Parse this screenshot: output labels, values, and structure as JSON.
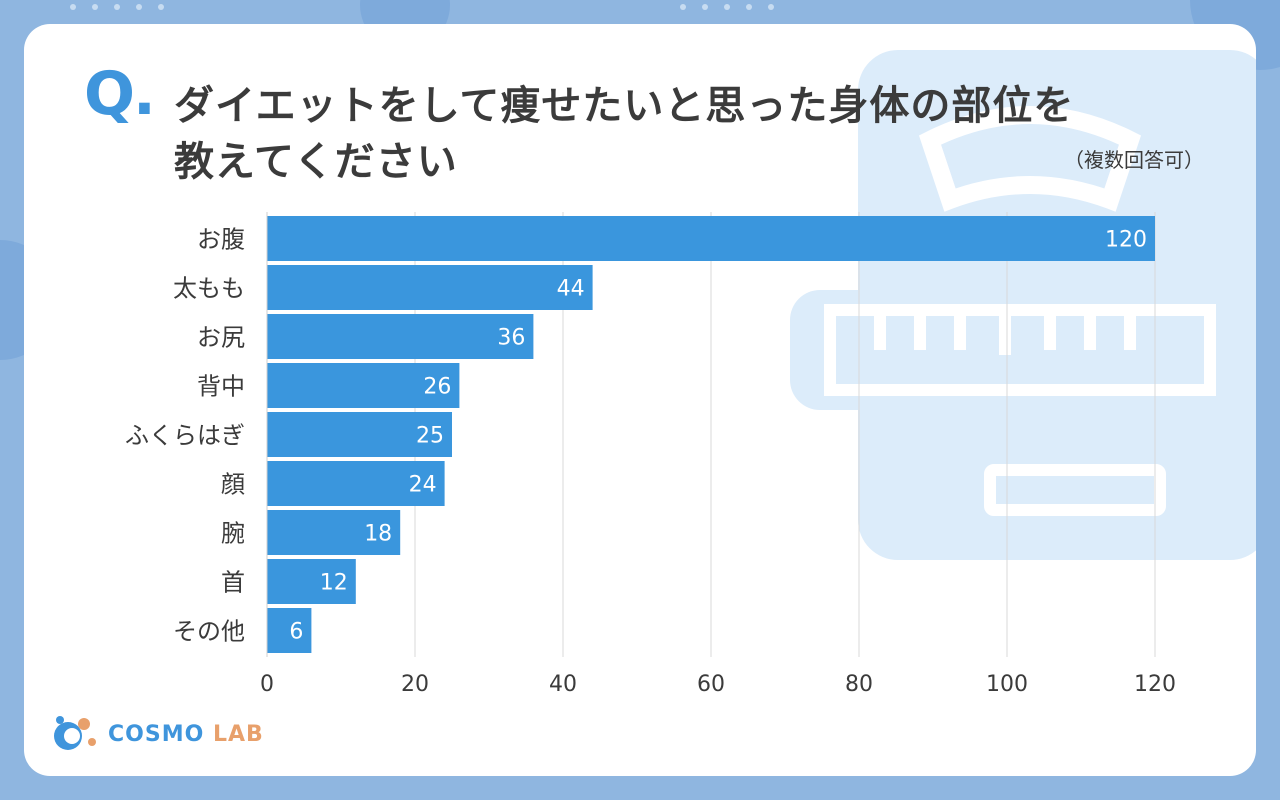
{
  "question_mark": "Q.",
  "title_line1": "ダイエットをして痩せたいと思った身体の部位を",
  "title_line2": "教えてください",
  "note": "（複数回答可）",
  "logo": {
    "main": "COSMO",
    "sub": "LAB"
  },
  "colors": {
    "bar": "#3a96dd",
    "background": "#8fb6e0",
    "card": "#ffffff",
    "accent": "#3f95dc",
    "illustration": "#dcecfa"
  },
  "chart_data": {
    "type": "bar",
    "orientation": "horizontal",
    "categories": [
      "お腹",
      "太もも",
      "お尻",
      "背中",
      "ふくらはぎ",
      "顔",
      "腕",
      "首",
      "その他"
    ],
    "values": [
      120,
      44,
      36,
      26,
      25,
      24,
      18,
      12,
      6
    ],
    "xlim": [
      0,
      120
    ],
    "xticks": [
      0,
      20,
      40,
      60,
      80,
      100,
      120
    ],
    "grid": "vertical",
    "data_labels": true
  }
}
